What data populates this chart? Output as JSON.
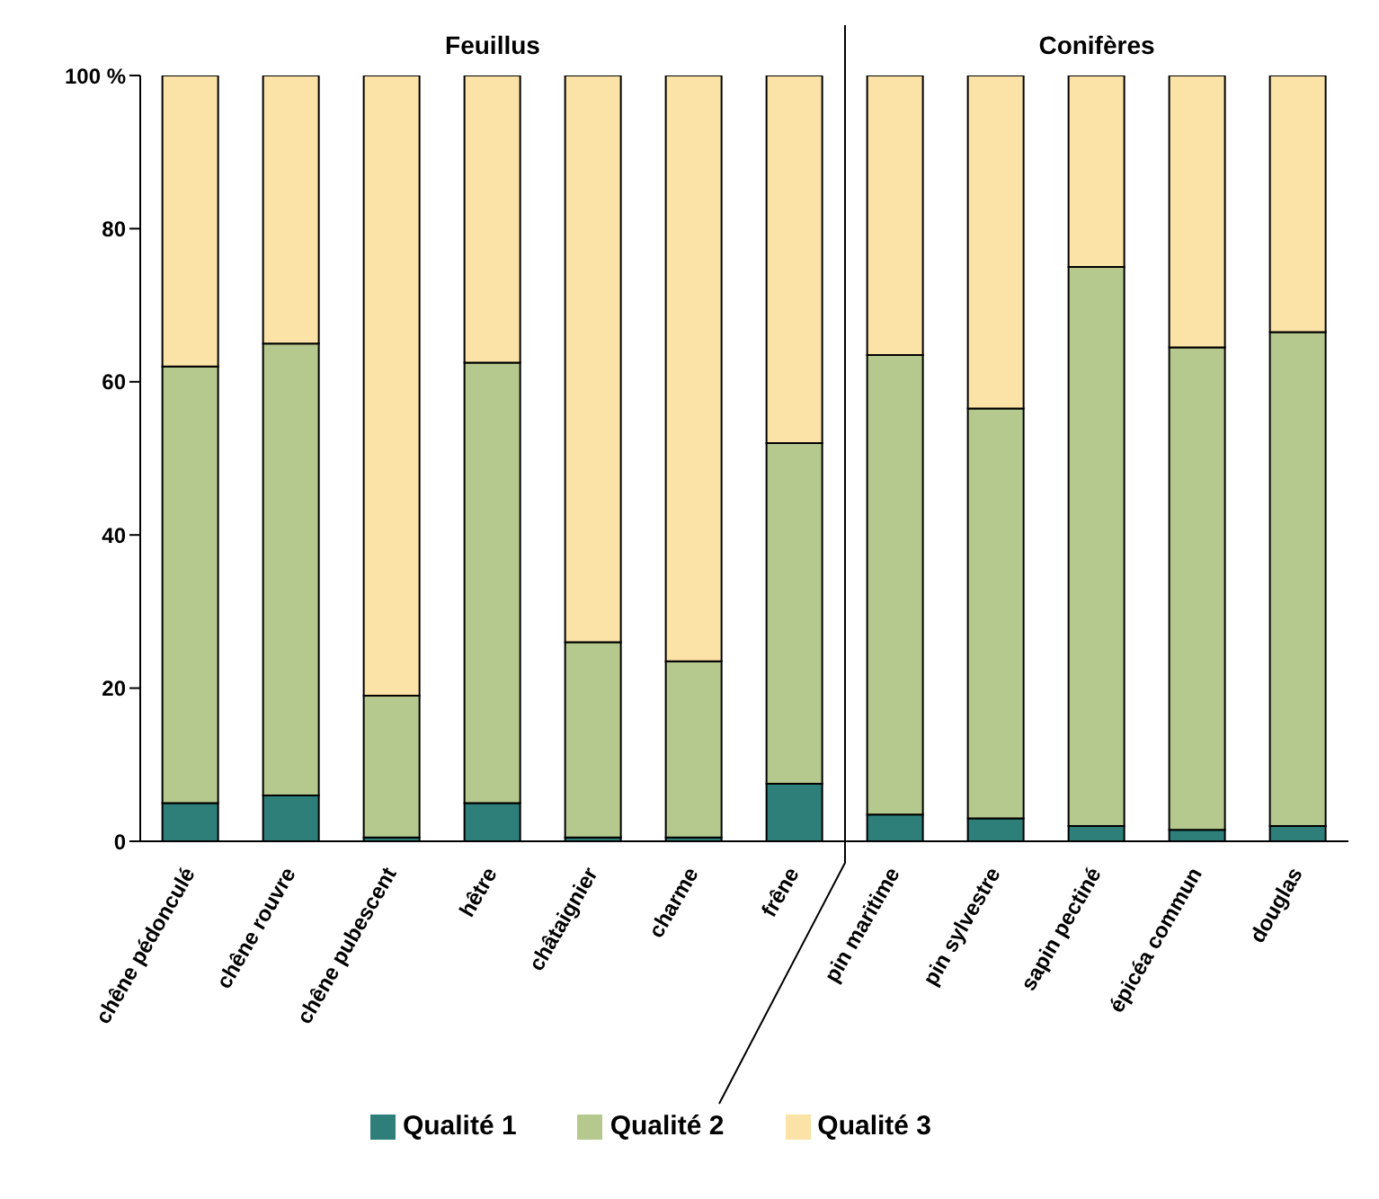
{
  "chart_data": {
    "type": "bar",
    "stacked": true,
    "categories": [
      "chêne pédonculé",
      "chêne rouvre",
      "chêne pubescent",
      "hêtre",
      "châtaignier",
      "charme",
      "frêne",
      "pin maritime",
      "pin sylvestre",
      "sapin pectiné",
      "épicéa commun",
      "douglas"
    ],
    "series": [
      {
        "name": "Qualité 1",
        "color": "#2e7f7a",
        "values": [
          5,
          6,
          0.5,
          5,
          0.5,
          0.5,
          7.5,
          3.5,
          3,
          2,
          1.5,
          2
        ]
      },
      {
        "name": "Qualité 2",
        "color": "#b5c98e",
        "values": [
          57,
          59,
          18.5,
          57.5,
          25.5,
          23,
          44.5,
          60,
          53.5,
          73,
          63,
          64.5
        ]
      },
      {
        "name": "Qualité 3",
        "color": "#fbe3a7",
        "values": [
          38,
          35,
          81,
          37.5,
          74,
          76.5,
          48,
          36.5,
          43.5,
          25,
          35.5,
          33.5
        ]
      }
    ],
    "ylim": [
      0,
      100
    ],
    "yticks": [
      0,
      20,
      40,
      60,
      80,
      {
        "value": 100,
        "label": "100 %"
      }
    ],
    "grid": false,
    "legend": "bottom",
    "annotations": [
      "Feuillus",
      "Conifères"
    ]
  }
}
